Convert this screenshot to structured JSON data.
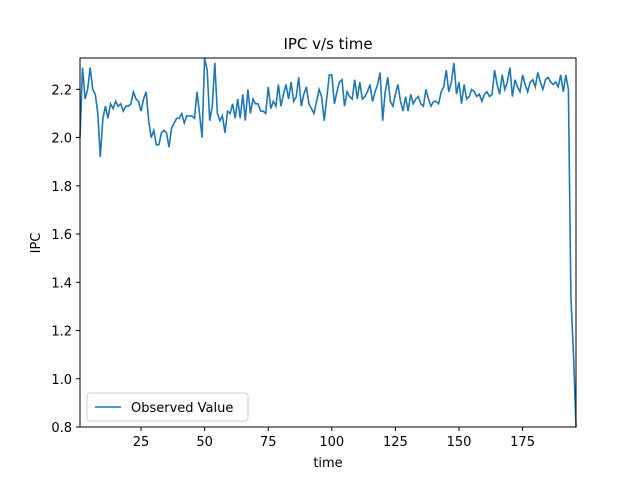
{
  "chart_data": {
    "type": "line",
    "title": "IPC v/s time",
    "xlabel": "time",
    "ylabel": "IPC",
    "xlim": [
      1,
      196
    ],
    "ylim": [
      0.8,
      2.33
    ],
    "xticks": [
      25,
      50,
      75,
      100,
      125,
      150,
      175
    ],
    "yticks": [
      0.8,
      1.0,
      1.2,
      1.4,
      1.6,
      1.8,
      2.0,
      2.2
    ],
    "ytick_labels": [
      "0.8",
      "1.0",
      "1.2",
      "1.4",
      "1.6",
      "1.8",
      "2.0",
      "2.2"
    ],
    "grid": false,
    "legend": {
      "position": "lower-left"
    },
    "series": [
      {
        "name": "Observed Value",
        "color": "#1f77b4",
        "points": [
          [
            1,
            2.0
          ],
          [
            2,
            2.29
          ],
          [
            3,
            2.16
          ],
          [
            4,
            2.2
          ],
          [
            5,
            2.29
          ],
          [
            6,
            2.2
          ],
          [
            7,
            2.18
          ],
          [
            8,
            2.1
          ],
          [
            9,
            1.92
          ],
          [
            10,
            2.08
          ],
          [
            11,
            2.13
          ],
          [
            12,
            2.08
          ],
          [
            13,
            2.14
          ],
          [
            14,
            2.12
          ],
          [
            15,
            2.15
          ],
          [
            16,
            2.13
          ],
          [
            17,
            2.14
          ],
          [
            18,
            2.11
          ],
          [
            19,
            2.13
          ],
          [
            20,
            2.13
          ],
          [
            21,
            2.14
          ],
          [
            22,
            2.19
          ],
          [
            23,
            2.16
          ],
          [
            24,
            2.15
          ],
          [
            25,
            2.11
          ],
          [
            26,
            2.16
          ],
          [
            27,
            2.19
          ],
          [
            28,
            2.07
          ],
          [
            29,
            2.0
          ],
          [
            30,
            2.03
          ],
          [
            31,
            1.97
          ],
          [
            32,
            1.97
          ],
          [
            33,
            2.02
          ],
          [
            34,
            2.03
          ],
          [
            35,
            2.02
          ],
          [
            36,
            1.96
          ],
          [
            37,
            2.04
          ],
          [
            38,
            2.06
          ],
          [
            39,
            2.08
          ],
          [
            40,
            2.08
          ],
          [
            41,
            2.1
          ],
          [
            42,
            2.06
          ],
          [
            43,
            2.09
          ],
          [
            44,
            2.09
          ],
          [
            45,
            2.09
          ],
          [
            46,
            2.08
          ],
          [
            47,
            2.19
          ],
          [
            48,
            2.1
          ],
          [
            49,
            2.0
          ],
          [
            50,
            2.33
          ],
          [
            51,
            2.28
          ],
          [
            52,
            2.07
          ],
          [
            53,
            2.13
          ],
          [
            54,
            2.31
          ],
          [
            55,
            2.1
          ],
          [
            56,
            2.07
          ],
          [
            57,
            2.09
          ],
          [
            58,
            2.02
          ],
          [
            59,
            2.11
          ],
          [
            60,
            2.1
          ],
          [
            61,
            2.14
          ],
          [
            62,
            2.08
          ],
          [
            63,
            2.16
          ],
          [
            64,
            2.08
          ],
          [
            65,
            2.18
          ],
          [
            66,
            2.07
          ],
          [
            67,
            2.2
          ],
          [
            68,
            2.1
          ],
          [
            69,
            2.16
          ],
          [
            70,
            2.14
          ],
          [
            71,
            2.14
          ],
          [
            72,
            2.11
          ],
          [
            73,
            2.11
          ],
          [
            74,
            2.1
          ],
          [
            75,
            2.21
          ],
          [
            76,
            2.12
          ],
          [
            77,
            2.15
          ],
          [
            78,
            2.13
          ],
          [
            79,
            2.22
          ],
          [
            80,
            2.13
          ],
          [
            81,
            2.18
          ],
          [
            82,
            2.22
          ],
          [
            83,
            2.16
          ],
          [
            84,
            2.23
          ],
          [
            85,
            2.15
          ],
          [
            86,
            2.17
          ],
          [
            87,
            2.25
          ],
          [
            88,
            2.13
          ],
          [
            89,
            2.18
          ],
          [
            90,
            2.21
          ],
          [
            91,
            2.14
          ],
          [
            92,
            2.12
          ],
          [
            93,
            2.1
          ],
          [
            94,
            2.15
          ],
          [
            95,
            2.2
          ],
          [
            96,
            2.17
          ],
          [
            97,
            2.07
          ],
          [
            98,
            2.16
          ],
          [
            99,
            2.26
          ],
          [
            100,
            2.26
          ],
          [
            101,
            2.14
          ],
          [
            102,
            2.19
          ],
          [
            103,
            2.23
          ],
          [
            104,
            2.24
          ],
          [
            105,
            2.13
          ],
          [
            106,
            2.19
          ],
          [
            107,
            2.17
          ],
          [
            108,
            2.16
          ],
          [
            109,
            2.24
          ],
          [
            110,
            2.16
          ],
          [
            111,
            2.23
          ],
          [
            112,
            2.16
          ],
          [
            113,
            2.17
          ],
          [
            114,
            2.19
          ],
          [
            115,
            2.22
          ],
          [
            116,
            2.15
          ],
          [
            117,
            2.19
          ],
          [
            118,
            2.22
          ],
          [
            119,
            2.27
          ],
          [
            120,
            2.07
          ],
          [
            121,
            2.19
          ],
          [
            122,
            2.25
          ],
          [
            123,
            2.15
          ],
          [
            124,
            2.13
          ],
          [
            125,
            2.18
          ],
          [
            126,
            2.22
          ],
          [
            127,
            2.15
          ],
          [
            128,
            2.11
          ],
          [
            129,
            2.17
          ],
          [
            130,
            2.11
          ],
          [
            131,
            2.18
          ],
          [
            132,
            2.14
          ],
          [
            133,
            2.16
          ],
          [
            134,
            2.17
          ],
          [
            135,
            2.14
          ],
          [
            136,
            2.13
          ],
          [
            137,
            2.2
          ],
          [
            138,
            2.16
          ],
          [
            139,
            2.13
          ],
          [
            140,
            2.15
          ],
          [
            141,
            2.15
          ],
          [
            142,
            2.14
          ],
          [
            143,
            2.19
          ],
          [
            144,
            2.21
          ],
          [
            145,
            2.28
          ],
          [
            146,
            2.19
          ],
          [
            147,
            2.23
          ],
          [
            148,
            2.31
          ],
          [
            149,
            2.18
          ],
          [
            150,
            2.23
          ],
          [
            151,
            2.14
          ],
          [
            152,
            2.22
          ],
          [
            153,
            2.16
          ],
          [
            154,
            2.17
          ],
          [
            155,
            2.2
          ],
          [
            156,
            2.19
          ],
          [
            157,
            2.17
          ],
          [
            158,
            2.18
          ],
          [
            159,
            2.15
          ],
          [
            160,
            2.18
          ],
          [
            161,
            2.19
          ],
          [
            162,
            2.17
          ],
          [
            163,
            2.18
          ],
          [
            164,
            2.28
          ],
          [
            165,
            2.22
          ],
          [
            166,
            2.18
          ],
          [
            167,
            2.26
          ],
          [
            168,
            2.2
          ],
          [
            169,
            2.23
          ],
          [
            170,
            2.29
          ],
          [
            171,
            2.17
          ],
          [
            172,
            2.24
          ],
          [
            173,
            2.21
          ],
          [
            174,
            2.19
          ],
          [
            175,
            2.26
          ],
          [
            176,
            2.22
          ],
          [
            177,
            2.19
          ],
          [
            178,
            2.23
          ],
          [
            179,
            2.24
          ],
          [
            180,
            2.21
          ],
          [
            181,
            2.27
          ],
          [
            182,
            2.23
          ],
          [
            183,
            2.2
          ],
          [
            184,
            2.24
          ],
          [
            185,
            2.25
          ],
          [
            186,
            2.23
          ],
          [
            187,
            2.22
          ],
          [
            188,
            2.23
          ],
          [
            189,
            2.21
          ],
          [
            190,
            2.26
          ],
          [
            191,
            2.19
          ],
          [
            192,
            2.26
          ],
          [
            193,
            2.2
          ],
          [
            194,
            1.34
          ],
          [
            195,
            1.1
          ],
          [
            196,
            0.8
          ]
        ]
      }
    ]
  }
}
